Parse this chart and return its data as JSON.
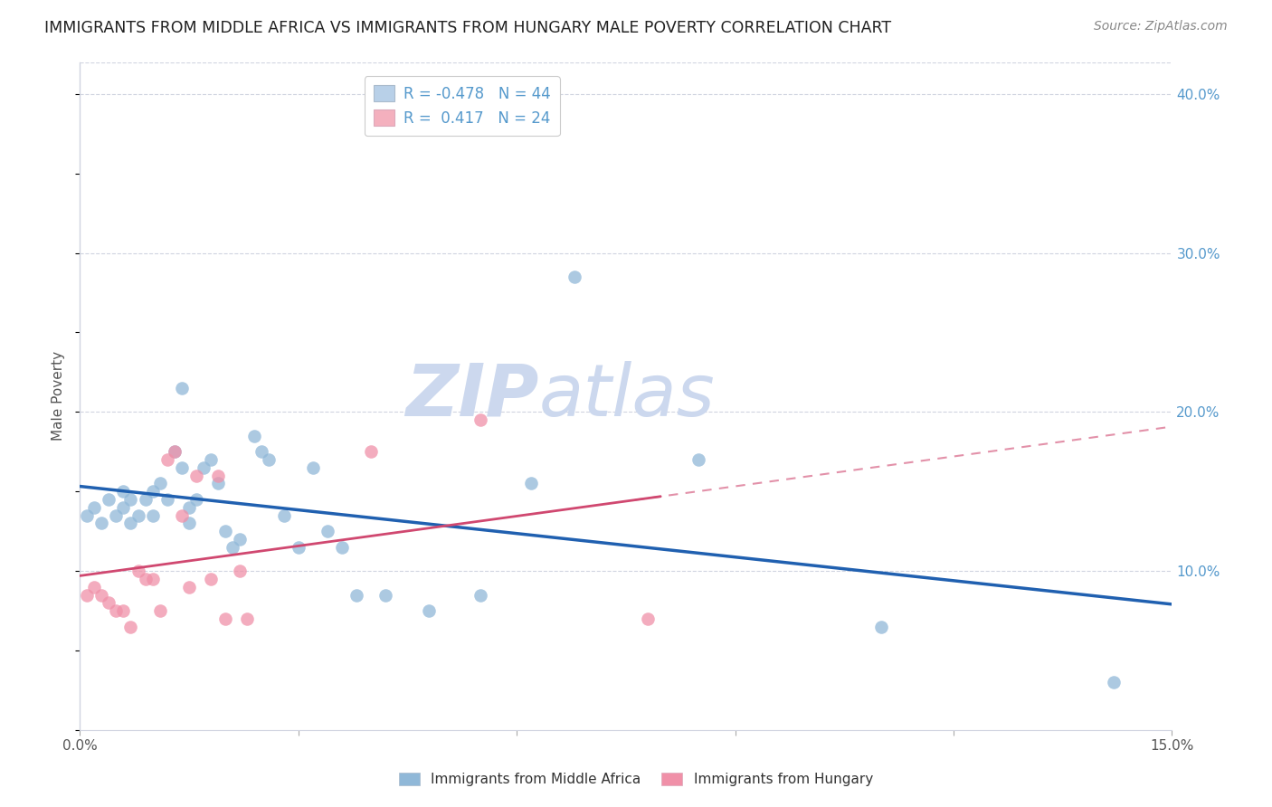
{
  "title": "IMMIGRANTS FROM MIDDLE AFRICA VS IMMIGRANTS FROM HUNGARY MALE POVERTY CORRELATION CHART",
  "source": "Source: ZipAtlas.com",
  "ylabel": "Male Poverty",
  "xlim": [
    0.0,
    0.15
  ],
  "ylim": [
    0.0,
    0.42
  ],
  "xticks": [
    0.0,
    0.03,
    0.06,
    0.09,
    0.12,
    0.15
  ],
  "xticklabels": [
    "0.0%",
    "",
    "",
    "",
    "",
    "15.0%"
  ],
  "yticks_right": [
    0.1,
    0.2,
    0.3,
    0.4
  ],
  "yticklabels_right": [
    "10.0%",
    "20.0%",
    "30.0%",
    "40.0%"
  ],
  "legend1_label": "R = -0.478   N = 44",
  "legend2_label": "R =  0.417   N = 24",
  "legend1_color": "#b8d0e8",
  "legend2_color": "#f4b0be",
  "series1_color": "#90b8d8",
  "series2_color": "#f090a8",
  "trendline1_color": "#2060b0",
  "trendline2_color": "#d04870",
  "watermark_zip": "ZIP",
  "watermark_atlas": "atlas",
  "watermark_color": "#ccd8ee",
  "grid_color": "#d0d4e0",
  "title_color": "#222222",
  "source_color": "#888888",
  "right_axis_color": "#5599cc",
  "blue_points_x": [
    0.001,
    0.002,
    0.003,
    0.004,
    0.005,
    0.006,
    0.006,
    0.007,
    0.007,
    0.008,
    0.009,
    0.01,
    0.01,
    0.011,
    0.012,
    0.013,
    0.014,
    0.014,
    0.015,
    0.015,
    0.016,
    0.017,
    0.018,
    0.019,
    0.02,
    0.021,
    0.022,
    0.024,
    0.025,
    0.026,
    0.028,
    0.03,
    0.032,
    0.034,
    0.036,
    0.038,
    0.042,
    0.048,
    0.055,
    0.062,
    0.068,
    0.085,
    0.11,
    0.142
  ],
  "blue_points_y": [
    0.135,
    0.14,
    0.13,
    0.145,
    0.135,
    0.15,
    0.14,
    0.145,
    0.13,
    0.135,
    0.145,
    0.15,
    0.135,
    0.155,
    0.145,
    0.175,
    0.215,
    0.165,
    0.14,
    0.13,
    0.145,
    0.165,
    0.17,
    0.155,
    0.125,
    0.115,
    0.12,
    0.185,
    0.175,
    0.17,
    0.135,
    0.115,
    0.165,
    0.125,
    0.115,
    0.085,
    0.085,
    0.075,
    0.085,
    0.155,
    0.285,
    0.17,
    0.065,
    0.03
  ],
  "pink_points_x": [
    0.001,
    0.002,
    0.003,
    0.004,
    0.005,
    0.006,
    0.007,
    0.008,
    0.009,
    0.01,
    0.011,
    0.012,
    0.013,
    0.014,
    0.015,
    0.016,
    0.018,
    0.019,
    0.02,
    0.022,
    0.023,
    0.04,
    0.055,
    0.078
  ],
  "pink_points_y": [
    0.085,
    0.09,
    0.085,
    0.08,
    0.075,
    0.075,
    0.065,
    0.1,
    0.095,
    0.095,
    0.075,
    0.17,
    0.175,
    0.135,
    0.09,
    0.16,
    0.095,
    0.16,
    0.07,
    0.1,
    0.07,
    0.175,
    0.195,
    0.07
  ]
}
